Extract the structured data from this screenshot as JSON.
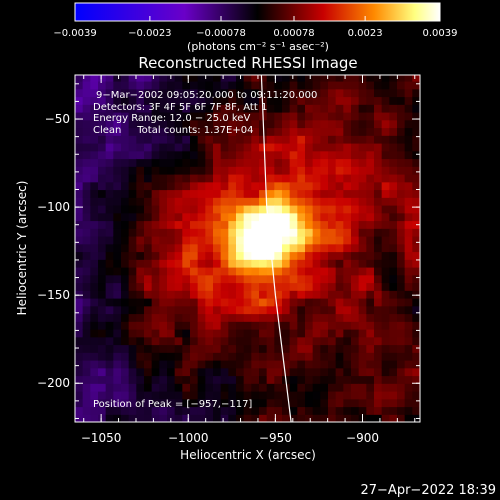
{
  "chart_data": {
    "type": "heatmap",
    "title": "Reconstructed RHESSI Image",
    "xlabel": "Heliocentric X (arcsec)",
    "ylabel": "Heliocentric Y (arcsec)",
    "xlim": [
      -1065,
      -867
    ],
    "ylim": [
      -222,
      -25
    ],
    "x_ticks": [
      -1050,
      -1000,
      -950,
      -900
    ],
    "x_tick_labels": [
      "−1050",
      "−1000",
      "−950",
      "−900"
    ],
    "y_ticks": [
      -50,
      -100,
      -150,
      -200
    ],
    "y_tick_labels": [
      "−50",
      "−100",
      "−150",
      "−200"
    ],
    "colorbar": {
      "ticks": [
        -0.0039,
        -0.0023,
        -0.00078,
        0.00078,
        0.0023,
        0.0039
      ],
      "tick_labels": [
        "−0.0039",
        "−0.0023",
        "−0.00078",
        "0.00078",
        "0.0023",
        "0.0039"
      ],
      "unit_label": "(photons cm⁻² s⁻¹ asec⁻²)",
      "range": [
        -0.0039,
        0.0039
      ],
      "colors": [
        "#0000ff",
        "#6a00c8",
        "#000000",
        "#c80000",
        "#ff8a00",
        "#ffff80",
        "#ffffff"
      ]
    },
    "annotations": [
      "9−Mar−2002 09:05:20.000 to 09:11:20.000",
      "Detectors: 3F 4F 5F 6F 7F 8F, Att 1",
      "Energy Range: 12.0 − 25.0 keV",
      "Clean     Total counts: 1.37E+04"
    ],
    "peak_label": "Position of Peak = [−957,−117]",
    "peak": {
      "x": -957,
      "y": -117
    },
    "limb": [
      {
        "x": -958,
        "y": -25
      },
      {
        "x": -955,
        "y": -100
      },
      {
        "x": -950,
        "y": -150
      },
      {
        "x": -941,
        "y": -222
      }
    ],
    "grid": false
  },
  "footer": {
    "timestamp": "27−Apr−2022 18:39"
  }
}
